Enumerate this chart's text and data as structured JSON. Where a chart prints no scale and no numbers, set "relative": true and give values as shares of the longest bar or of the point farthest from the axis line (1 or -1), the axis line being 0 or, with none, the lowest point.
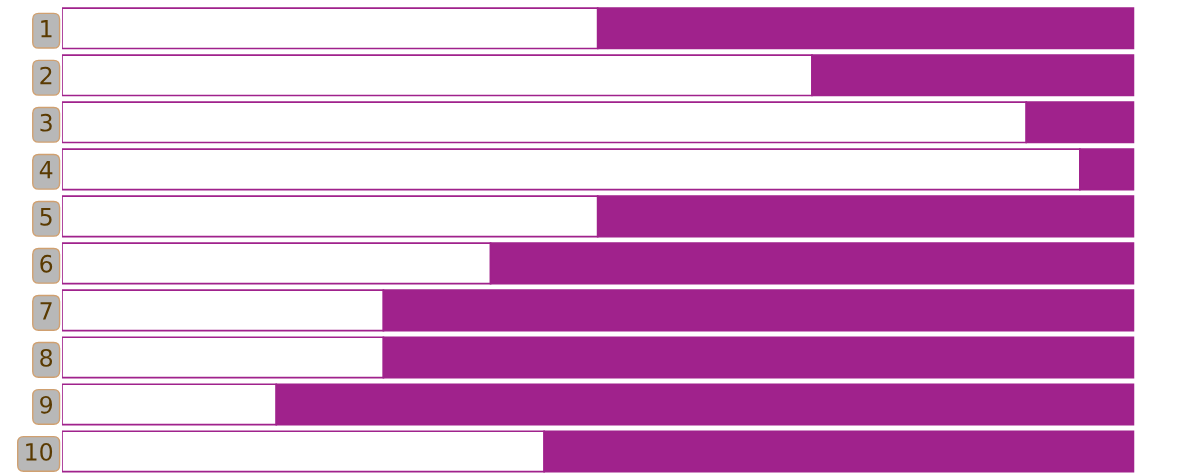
{
  "chart_data": {
    "type": "bar",
    "orientation": "horizontal",
    "stacked": true,
    "relative": true,
    "categories": [
      "1",
      "2",
      "3",
      "4",
      "5",
      "6",
      "7",
      "8",
      "9",
      "10"
    ],
    "series": [
      {
        "color": "#ffffff",
        "values": [
          0.5,
          0.7,
          0.9,
          0.95,
          0.5,
          0.4,
          0.3,
          0.3,
          0.2,
          0.45
        ]
      },
      {
        "color": "#a0228c",
        "values": [
          0.5,
          0.3,
          0.1,
          0.05,
          0.5,
          0.6,
          0.7,
          0.7,
          0.8,
          0.55
        ]
      }
    ]
  }
}
